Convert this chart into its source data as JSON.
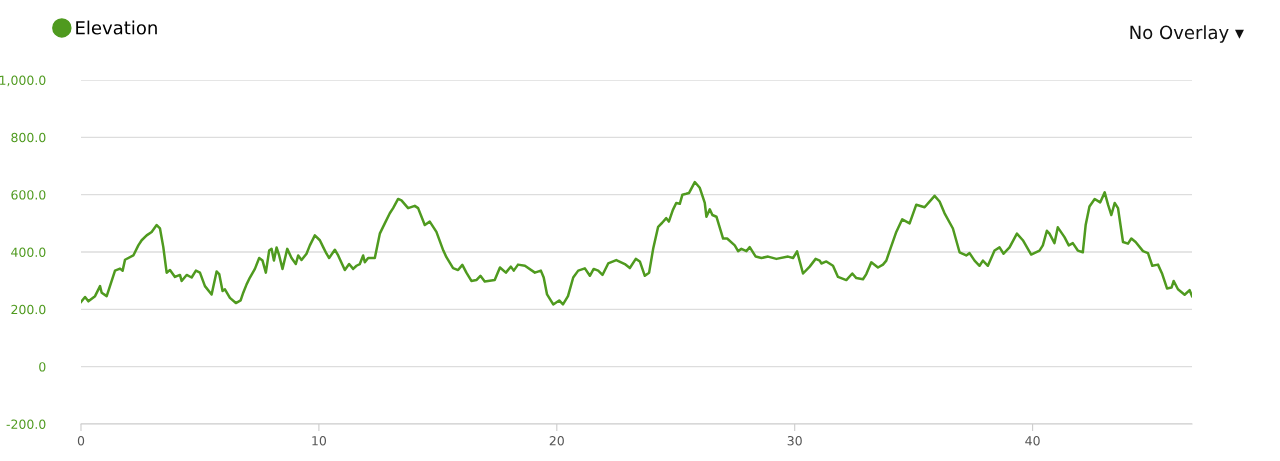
{
  "chart_data": {
    "type": "line",
    "legend": "top left",
    "grid": "y",
    "marker": "none",
    "line_style": "solid",
    "annotations": [
      "No Overlay ▾"
    ],
    "xlim": [
      0,
      46.7
    ],
    "xticks": [
      0,
      10,
      20,
      30,
      40
    ],
    "ylim": [
      -200,
      1000
    ],
    "yticks": [
      {
        "value": -200,
        "label": "-200.0"
      },
      0,
      {
        "value": 200,
        "label": "200.0"
      },
      {
        "value": 400,
        "label": "400.0"
      },
      {
        "value": 600,
        "label": "600.0"
      },
      {
        "value": 800,
        "label": "800.0"
      },
      {
        "value": 1000,
        "label": "1,000.0"
      }
    ],
    "series": [
      {
        "name": "Elevation",
        "color": "#4f9a1f",
        "x": [
          0.0,
          0.17,
          0.31,
          0.59,
          0.8,
          0.87,
          1.08,
          1.43,
          1.64,
          1.75,
          1.85,
          2.2,
          2.41,
          2.55,
          2.76,
          2.97,
          3.18,
          3.32,
          3.46,
          3.6,
          3.74,
          3.95,
          4.16,
          4.23,
          4.44,
          4.65,
          4.83,
          5.0,
          5.21,
          5.49,
          5.7,
          5.81,
          5.95,
          6.05,
          6.26,
          6.51,
          6.71,
          6.82,
          6.96,
          7.1,
          7.31,
          7.49,
          7.63,
          7.77,
          7.91,
          8.01,
          8.11,
          8.22,
          8.33,
          8.47,
          8.67,
          8.85,
          9.03,
          9.13,
          9.27,
          9.48,
          9.62,
          9.83,
          10.04,
          10.18,
          10.32,
          10.43,
          10.67,
          10.81,
          11.09,
          11.27,
          11.44,
          11.58,
          11.72,
          11.86,
          11.93,
          12.07,
          12.35,
          12.56,
          12.77,
          12.98,
          13.12,
          13.33,
          13.47,
          13.75,
          14.03,
          14.17,
          14.45,
          14.66,
          14.94,
          15.23,
          15.36,
          15.64,
          15.85,
          16.03,
          16.2,
          16.41,
          16.62,
          16.79,
          16.97,
          17.39,
          17.61,
          17.86,
          18.07,
          18.19,
          18.37,
          18.66,
          19.08,
          19.33,
          19.45,
          19.59,
          19.85,
          20.1,
          20.26,
          20.47,
          20.69,
          20.9,
          21.18,
          21.39,
          21.55,
          21.74,
          21.92,
          22.16,
          22.5,
          22.86,
          23.07,
          23.32,
          23.49,
          23.7,
          23.88,
          24.05,
          24.26,
          24.43,
          24.6,
          24.71,
          24.88,
          25.02,
          25.17,
          25.28,
          25.44,
          25.56,
          25.8,
          26.01,
          26.22,
          26.29,
          26.43,
          26.54,
          26.71,
          26.99,
          27.16,
          27.48,
          27.62,
          27.76,
          27.97,
          28.11,
          28.36,
          28.6,
          28.88,
          29.23,
          29.72,
          29.93,
          30.1,
          30.35,
          30.63,
          30.88,
          31.05,
          31.12,
          31.33,
          31.61,
          31.82,
          32.17,
          32.42,
          32.59,
          32.87,
          33.01,
          33.22,
          33.5,
          33.71,
          33.85,
          34.02,
          34.27,
          34.52,
          34.83,
          35.11,
          35.46,
          35.64,
          35.88,
          36.09,
          36.3,
          36.65,
          36.93,
          37.21,
          37.35,
          37.56,
          37.77,
          37.91,
          38.12,
          38.4,
          38.61,
          38.78,
          39.03,
          39.34,
          39.59,
          39.94,
          40.29,
          40.43,
          40.6,
          40.71,
          40.92,
          41.06,
          41.34,
          41.52,
          41.69,
          41.9,
          42.11,
          42.23,
          42.39,
          42.61,
          42.84,
          43.03,
          43.17,
          43.31,
          43.45,
          43.59,
          43.8,
          44.01,
          44.15,
          44.33,
          44.64,
          44.85,
          45.03,
          45.27,
          45.45,
          45.65,
          45.84,
          45.93,
          46.11,
          46.39,
          46.6,
          46.7
        ],
        "values": [
          226,
          243,
          228,
          246,
          281,
          258,
          246,
          335,
          342,
          335,
          373,
          388,
          423,
          441,
          458,
          470,
          494,
          482,
          417,
          328,
          337,
          313,
          320,
          299,
          320,
          311,
          335,
          328,
          281,
          252,
          332,
          323,
          264,
          270,
          240,
          222,
          231,
          258,
          287,
          311,
          341,
          379,
          370,
          328,
          405,
          411,
          370,
          416,
          388,
          341,
          411,
          379,
          358,
          388,
          372,
          394,
          423,
          458,
          441,
          417,
          394,
          379,
          408,
          388,
          337,
          358,
          341,
          352,
          358,
          388,
          364,
          379,
          379,
          464,
          500,
          535,
          553,
          585,
          580,
          553,
          561,
          553,
          494,
          506,
          470,
          405,
          382,
          344,
          337,
          355,
          328,
          299,
          302,
          317,
          297,
          302,
          346,
          328,
          349,
          335,
          356,
          352,
          328,
          335,
          311,
          252,
          217,
          231,
          217,
          246,
          311,
          335,
          343,
          317,
          341,
          335,
          320,
          360,
          372,
          358,
          344,
          376,
          367,
          317,
          328,
          411,
          488,
          502,
          518,
          506,
          547,
          571,
          568,
          600,
          603,
          606,
          644,
          624,
          571,
          523,
          549,
          529,
          523,
          447,
          447,
          423,
          403,
          411,
          403,
          417,
          384,
          379,
          384,
          376,
          384,
          379,
          402,
          325,
          349,
          376,
          370,
          360,
          367,
          352,
          313,
          302,
          325,
          309,
          305,
          323,
          364,
          346,
          356,
          370,
          411,
          470,
          514,
          500,
          565,
          556,
          573,
          596,
          576,
          535,
          482,
          399,
          388,
          396,
          370,
          352,
          370,
          352,
          405,
          416,
          394,
          416,
          464,
          441,
          391,
          405,
          423,
          474,
          464,
          431,
          486,
          452,
          423,
          431,
          405,
          399,
          494,
          559,
          585,
          573,
          608,
          565,
          529,
          571,
          553,
          435,
          429,
          447,
          435,
          403,
          396,
          352,
          356,
          323,
          273,
          276,
          299,
          270,
          251,
          267,
          246
        ]
      }
    ]
  }
}
